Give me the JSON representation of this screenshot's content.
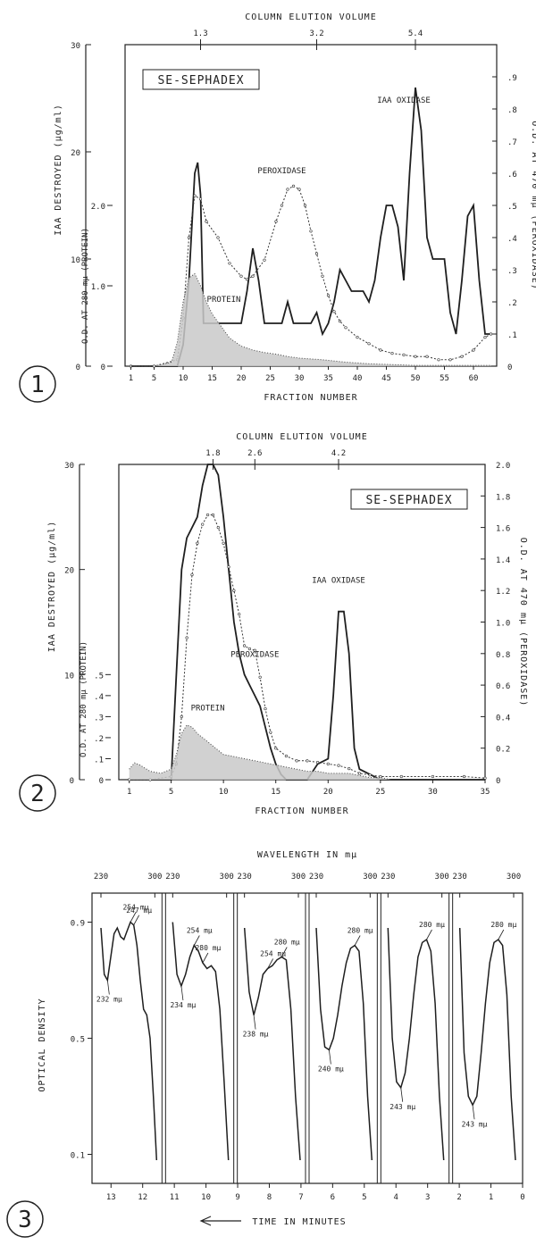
{
  "panels": [
    {
      "id": "fig1",
      "number": "1",
      "box_label": "SE-SEPHADEX",
      "top_axis_title": "COLUMN ELUTION VOLUME",
      "top_ticks": [
        "1.3",
        "3.2",
        "5.4"
      ],
      "top_tick_at_fraction": [
        13,
        33,
        50
      ],
      "x_title": "FRACTION NUMBER",
      "x_range": [
        0,
        64
      ],
      "x_ticks": [
        "1",
        "5",
        "10",
        "15",
        "20",
        "25",
        "30",
        "35",
        "40",
        "45",
        "50",
        "55",
        "60"
      ],
      "x_tick_values": [
        1,
        5,
        10,
        15,
        20,
        25,
        30,
        35,
        40,
        45,
        50,
        55,
        60
      ],
      "y_left_title": "IAA DESTROYED (μg/ml)",
      "y_left_ticks": [
        "0",
        "10",
        "20",
        "30"
      ],
      "y_left_range": [
        0,
        30
      ],
      "y_inner_title": "O.D. AT 280 mμ (PROTEIN)",
      "y_inner_ticks": [
        "0",
        "1.0",
        "2.0"
      ],
      "y_inner_range": [
        0,
        4.0
      ],
      "y_right_title": "O.D. AT 470 mμ (PEROXIDASE)",
      "y_right_ticks": [
        "0",
        ".1",
        ".2",
        ".3",
        ".4",
        ".5",
        ".6",
        ".7",
        ".8",
        ".9"
      ],
      "y_right_range": [
        0,
        1.0
      ],
      "annotations": [
        {
          "text": "IAA OXIDASE",
          "x": 48,
          "y": 0.82
        },
        {
          "text": "PEROXIDASE",
          "x": 27,
          "y": 0.6
        },
        {
          "text": "PROTEIN",
          "x": 17,
          "y": 0.2
        }
      ],
      "chart_data": {
        "type": "line",
        "series": [
          {
            "name": "IAA OXIDASE",
            "axis": "left",
            "style": "solid",
            "x": [
              1,
              5,
              9,
              10,
              11,
              12,
              12.5,
              13,
              13.5,
              14,
              16,
              18,
              20,
              21,
              22,
              23,
              24,
              26,
              27,
              28,
              29,
              30,
              32,
              33,
              34,
              35,
              36,
              37,
              38,
              39,
              40,
              41,
              42,
              43,
              44,
              45,
              46,
              47,
              48,
              49,
              50,
              51,
              52,
              53,
              54,
              55,
              56,
              57,
              58,
              59,
              60,
              61,
              62,
              63
            ],
            "y": [
              0,
              0,
              0,
              2,
              8,
              18,
              19,
              16,
              4,
              4,
              4,
              4,
              4,
              7,
              11,
              8,
              4,
              4,
              4,
              6,
              4,
              4,
              4,
              5,
              3,
              4,
              6,
              9,
              8,
              7,
              7,
              7,
              6,
              8,
              12,
              15,
              15,
              13,
              8,
              18,
              26,
              22,
              12,
              10,
              10,
              10,
              5,
              3,
              8,
              14,
              15,
              8,
              3,
              3
            ]
          },
          {
            "name": "PEROXIDASE",
            "axis": "right",
            "style": "dotted",
            "x": [
              1,
              5,
              9,
              10,
              11,
              12,
              13,
              14,
              16,
              18,
              20,
              21,
              22,
              24,
              26,
              27,
              28,
              29,
              30,
              31,
              32,
              33,
              34,
              35,
              36,
              37,
              38,
              40,
              42,
              44,
              46,
              48,
              50,
              52,
              54,
              56,
              58,
              60,
              62,
              63
            ],
            "y": [
              0,
              0,
              0.02,
              0.15,
              0.4,
              0.53,
              0.52,
              0.45,
              0.4,
              0.32,
              0.28,
              0.27,
              0.28,
              0.33,
              0.45,
              0.5,
              0.55,
              0.56,
              0.55,
              0.5,
              0.42,
              0.35,
              0.28,
              0.22,
              0.17,
              0.14,
              0.12,
              0.09,
              0.07,
              0.05,
              0.04,
              0.035,
              0.03,
              0.03,
              0.02,
              0.02,
              0.03,
              0.05,
              0.09,
              0.1
            ]
          },
          {
            "name": "PROTEIN",
            "axis": "inner",
            "style": "shaded",
            "x": [
              1,
              5,
              8,
              9,
              10,
              11,
              12,
              13,
              14,
              15,
              16,
              18,
              20,
              22,
              24,
              26,
              28,
              30,
              34,
              38,
              42,
              46,
              50,
              54,
              58,
              63
            ],
            "y": [
              0,
              0,
              0.05,
              0.3,
              0.8,
              1.1,
              1.15,
              1.0,
              0.8,
              0.65,
              0.55,
              0.35,
              0.25,
              0.2,
              0.17,
              0.15,
              0.12,
              0.1,
              0.08,
              0.05,
              0.03,
              0.02,
              0.01,
              0.01,
              0.01,
              0.01
            ]
          }
        ]
      }
    },
    {
      "id": "fig2",
      "number": "2",
      "box_label": "SE-SEPHADEX",
      "top_axis_title": "COLUMN ELUTION VOLUME",
      "top_ticks": [
        "1.8",
        "2.6",
        "4.2"
      ],
      "top_tick_at_fraction": [
        9,
        13,
        21
      ],
      "x_title": "FRACTION NUMBER",
      "x_range": [
        0,
        35
      ],
      "x_ticks": [
        "1",
        "5",
        "10",
        "15",
        "20",
        "25",
        "30",
        "35"
      ],
      "x_tick_values": [
        1,
        5,
        10,
        15,
        20,
        25,
        30,
        35
      ],
      "y_left_title": "IAA DESTROYED (μg/ml)",
      "y_left_ticks": [
        "0",
        "10",
        "20",
        "30"
      ],
      "y_left_range": [
        0,
        30
      ],
      "y_inner_title": "O.D. AT 280 mμ (PROTEIN)",
      "y_inner_ticks": [
        "0",
        ".1",
        ".2",
        ".3",
        ".4",
        ".5"
      ],
      "y_inner_range": [
        0,
        1.5
      ],
      "y_right_title": "O.D. AT 470 mμ (PEROXIDASE)",
      "y_right_ticks": [
        "0",
        "0.2",
        "0.4",
        "0.6",
        "0.8",
        "1.0",
        "1.2",
        "1.4",
        "1.6",
        "1.8",
        "2.0"
      ],
      "y_right_range": [
        0,
        2.0
      ],
      "annotations": [
        {
          "text": "IAA OXIDASE",
          "x": 21,
          "y": 1.25
        },
        {
          "text": "PEROXIDASE",
          "x": 13,
          "y": 0.78
        },
        {
          "text": "PROTEIN",
          "x": 8.5,
          "y": 0.44
        }
      ],
      "chart_data": {
        "type": "line",
        "series": [
          {
            "name": "IAA OXIDASE",
            "axis": "left",
            "style": "solid",
            "x": [
              1,
              3,
              5,
              5.5,
              6,
              6.5,
              7,
              7.5,
              8,
              8.5,
              9,
              9.5,
              10,
              10.5,
              11,
              11.5,
              12,
              12.5,
              13,
              13.5,
              14,
              14.5,
              15,
              15.5,
              16,
              17,
              18,
              19,
              20,
              20.5,
              21,
              21.5,
              22,
              22.5,
              23,
              24,
              25,
              30,
              35
            ],
            "y": [
              0,
              0,
              0,
              10,
              20,
              23,
              24,
              25,
              28,
              30,
              30,
              29,
              25,
              20,
              15,
              12,
              10,
              9,
              8,
              7,
              5,
              3,
              1.5,
              0.5,
              0,
              0,
              0,
              1.5,
              2,
              8,
              16,
              16,
              12,
              3,
              1,
              0.5,
              0,
              0,
              0
            ]
          },
          {
            "name": "PEROXIDASE",
            "axis": "right",
            "style": "dotted",
            "x": [
              1,
              3,
              5,
              5.5,
              6,
              6.5,
              7,
              7.5,
              8,
              8.5,
              9,
              9.5,
              10,
              10.5,
              11,
              11.5,
              12,
              12.5,
              13,
              13.5,
              14,
              14.5,
              15,
              16,
              17,
              18,
              19,
              20,
              21,
              22,
              23,
              24,
              25,
              27,
              30,
              33,
              35
            ],
            "y": [
              0,
              0,
              0.02,
              0.1,
              0.4,
              0.9,
              1.3,
              1.5,
              1.62,
              1.68,
              1.68,
              1.6,
              1.5,
              1.35,
              1.2,
              1.05,
              0.85,
              0.83,
              0.82,
              0.65,
              0.45,
              0.3,
              0.2,
              0.15,
              0.12,
              0.12,
              0.11,
              0.1,
              0.09,
              0.07,
              0.04,
              0.03,
              0.02,
              0.02,
              0.02,
              0.02,
              0.01
            ]
          },
          {
            "name": "PROTEIN",
            "axis": "inner",
            "style": "shaded",
            "x": [
              1,
              1.5,
              2,
              3,
              4,
              5,
              5.5,
              6,
              6.5,
              7,
              7.5,
              8,
              8.5,
              9,
              9.5,
              10,
              11,
              12,
              13,
              14,
              15,
              16,
              17,
              18,
              19,
              20,
              21,
              22,
              23,
              24,
              25,
              26
            ],
            "y": [
              0.05,
              0.08,
              0.07,
              0.04,
              0.03,
              0.05,
              0.12,
              0.22,
              0.26,
              0.25,
              0.22,
              0.2,
              0.18,
              0.16,
              0.14,
              0.12,
              0.11,
              0.1,
              0.09,
              0.08,
              0.07,
              0.06,
              0.05,
              0.04,
              0.04,
              0.03,
              0.03,
              0.03,
              0.02,
              0.01,
              0.01,
              0
            ]
          }
        ]
      }
    }
  ],
  "fig3": {
    "number": "3",
    "top_axis_title": "WAVELENGTH IN mμ",
    "wavelength_labels": [
      "230",
      "300"
    ],
    "y_title": "OPTICAL DENSITY",
    "y_ticks": [
      "0.1",
      "0.5",
      "0.9"
    ],
    "y_tick_values": [
      0.1,
      0.5,
      0.9
    ],
    "y_range": [
      0,
      1.0
    ],
    "x_title": "TIME IN MINUTES",
    "x_ticks": [
      "13",
      "12",
      "11",
      "10",
      "9",
      "8",
      "7",
      "6",
      "5",
      "4",
      "3",
      "2",
      "1",
      "0"
    ],
    "x_range": [
      13.6,
      0
    ],
    "chart_data": {
      "type": "line",
      "spectra": [
        {
          "labels": [
            {
              "text": "247 mμ",
              "od": 0.89
            },
            {
              "text": "254 mμ",
              "od": 0.9
            },
            {
              "text": "232 mμ",
              "od": 0.7
            }
          ],
          "od": [
            0.88,
            0.72,
            0.7,
            0.78,
            0.86,
            0.88,
            0.85,
            0.84,
            0.87,
            0.9,
            0.89,
            0.82,
            0.7,
            0.6,
            0.58,
            0.5,
            0.3,
            0.08
          ]
        },
        {
          "labels": [
            {
              "text": "254 mμ",
              "od": 0.82
            },
            {
              "text": "280 mμ",
              "od": 0.76
            },
            {
              "text": "234 mμ",
              "od": 0.68
            }
          ],
          "od": [
            0.9,
            0.72,
            0.68,
            0.72,
            0.78,
            0.82,
            0.8,
            0.76,
            0.74,
            0.75,
            0.73,
            0.6,
            0.35,
            0.08
          ]
        },
        {
          "labels": [
            {
              "text": "254 mμ",
              "od": 0.74
            },
            {
              "text": "280 mμ",
              "od": 0.78
            },
            {
              "text": "238 mμ",
              "od": 0.58
            }
          ],
          "od": [
            0.88,
            0.66,
            0.58,
            0.64,
            0.72,
            0.74,
            0.75,
            0.77,
            0.78,
            0.77,
            0.6,
            0.3,
            0.08
          ]
        },
        {
          "labels": [
            {
              "text": "280 mμ",
              "od": 0.82
            },
            {
              "text": "240 mμ",
              "od": 0.46
            }
          ],
          "od": [
            0.88,
            0.6,
            0.47,
            0.46,
            0.5,
            0.58,
            0.68,
            0.76,
            0.81,
            0.82,
            0.8,
            0.62,
            0.3,
            0.08
          ]
        },
        {
          "labels": [
            {
              "text": "280 mμ",
              "od": 0.84
            },
            {
              "text": "243 mμ",
              "od": 0.33
            }
          ],
          "od": [
            0.88,
            0.5,
            0.35,
            0.33,
            0.38,
            0.5,
            0.65,
            0.78,
            0.83,
            0.84,
            0.8,
            0.62,
            0.3,
            0.08
          ]
        },
        {
          "labels": [
            {
              "text": "280 mμ",
              "od": 0.84
            },
            {
              "text": "243 mμ",
              "od": 0.27
            }
          ],
          "od": [
            0.88,
            0.45,
            0.3,
            0.27,
            0.3,
            0.45,
            0.62,
            0.76,
            0.83,
            0.84,
            0.82,
            0.65,
            0.3,
            0.08
          ]
        }
      ]
    }
  }
}
